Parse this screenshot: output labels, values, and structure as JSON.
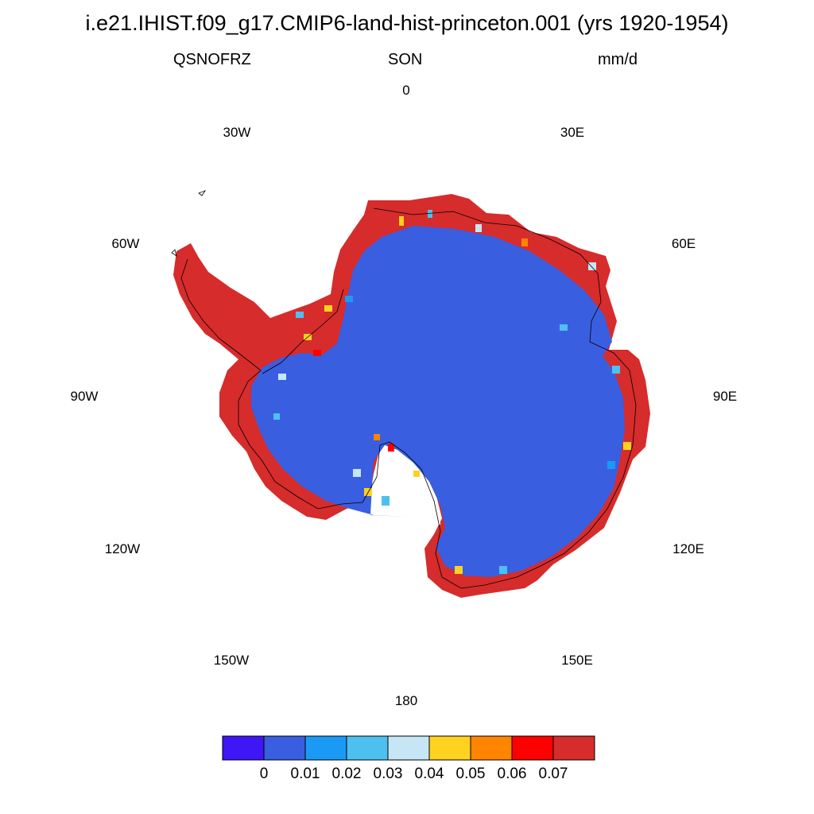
{
  "title": "i.e21.IHIST.f09_g17.CMIP6-land-hist-princeton.001 (yrs 1920-1954)",
  "variable": "QSNOFRZ",
  "season": "SON",
  "units": "mm/d",
  "longitude_labels": {
    "lon_0": "0",
    "lon_30e": "30E",
    "lon_60e": "60E",
    "lon_90e": "90E",
    "lon_120e": "120E",
    "lon_150e": "150E",
    "lon_180": "180",
    "lon_150w": "150W",
    "lon_120w": "120W",
    "lon_90w": "90W",
    "lon_60w": "60W",
    "lon_30w": "30W"
  },
  "colorbar": {
    "colors": [
      "#3f16f5",
      "#3a5ee0",
      "#1b9af5",
      "#4ec0f0",
      "#c6e6f5",
      "#ffd21f",
      "#ff8500",
      "#ff0000",
      "#d62c2c"
    ],
    "labels": [
      "0",
      "0.01",
      "0.02",
      "0.03",
      "0.04",
      "0.05",
      "0.06",
      "0.07"
    ]
  },
  "map_colors": {
    "interior": "#3a5ee0",
    "coast": "#d62c2c",
    "outline": "#000000"
  }
}
